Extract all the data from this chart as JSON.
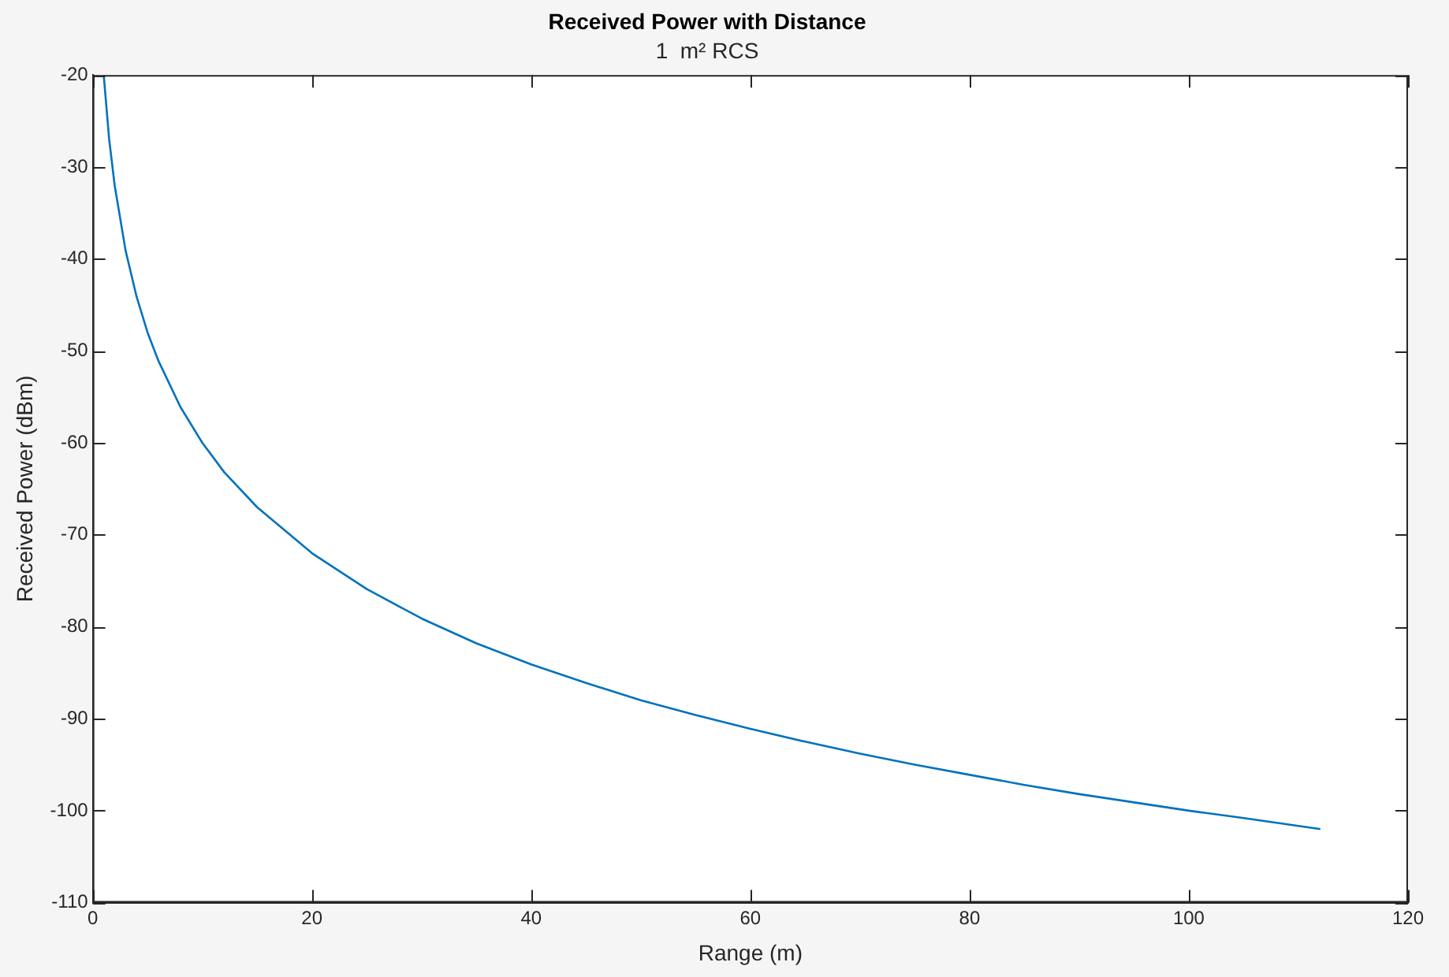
{
  "chart_data": {
    "type": "line",
    "title": "Received Power with Distance",
    "subtitle": "1  m² RCS",
    "xlabel": "Range (m)",
    "ylabel": "Received Power (dBm)",
    "x": [
      1,
      1.5,
      2,
      3,
      4,
      5,
      6,
      8,
      10,
      12,
      15,
      20,
      25,
      30,
      35,
      40,
      45,
      50,
      55,
      60,
      65,
      70,
      75,
      80,
      85,
      90,
      95,
      100,
      105,
      112
    ],
    "series": [
      {
        "color": "#0072bd",
        "values": [
          -20,
          -27.0,
          -32.0,
          -39.1,
          -44.1,
          -48.0,
          -51.1,
          -56.1,
          -60.0,
          -63.2,
          -67.0,
          -72.0,
          -75.9,
          -79.1,
          -81.8,
          -84.1,
          -86.1,
          -88.0,
          -89.6,
          -91.1,
          -92.5,
          -93.8,
          -95.0,
          -96.1,
          -97.2,
          -98.2,
          -99.1,
          -100.0,
          -100.8,
          -102.0
        ]
      }
    ],
    "xlim": [
      0,
      120
    ],
    "xticks": [
      0,
      20,
      40,
      60,
      80,
      100,
      120
    ],
    "ylim": [
      -110,
      -20
    ],
    "yticks": [
      -110,
      -100,
      -90,
      -80,
      -70,
      -60,
      -50,
      -40,
      -30,
      -20
    ],
    "legend": false,
    "marker": "none",
    "line_style": "solid"
  }
}
